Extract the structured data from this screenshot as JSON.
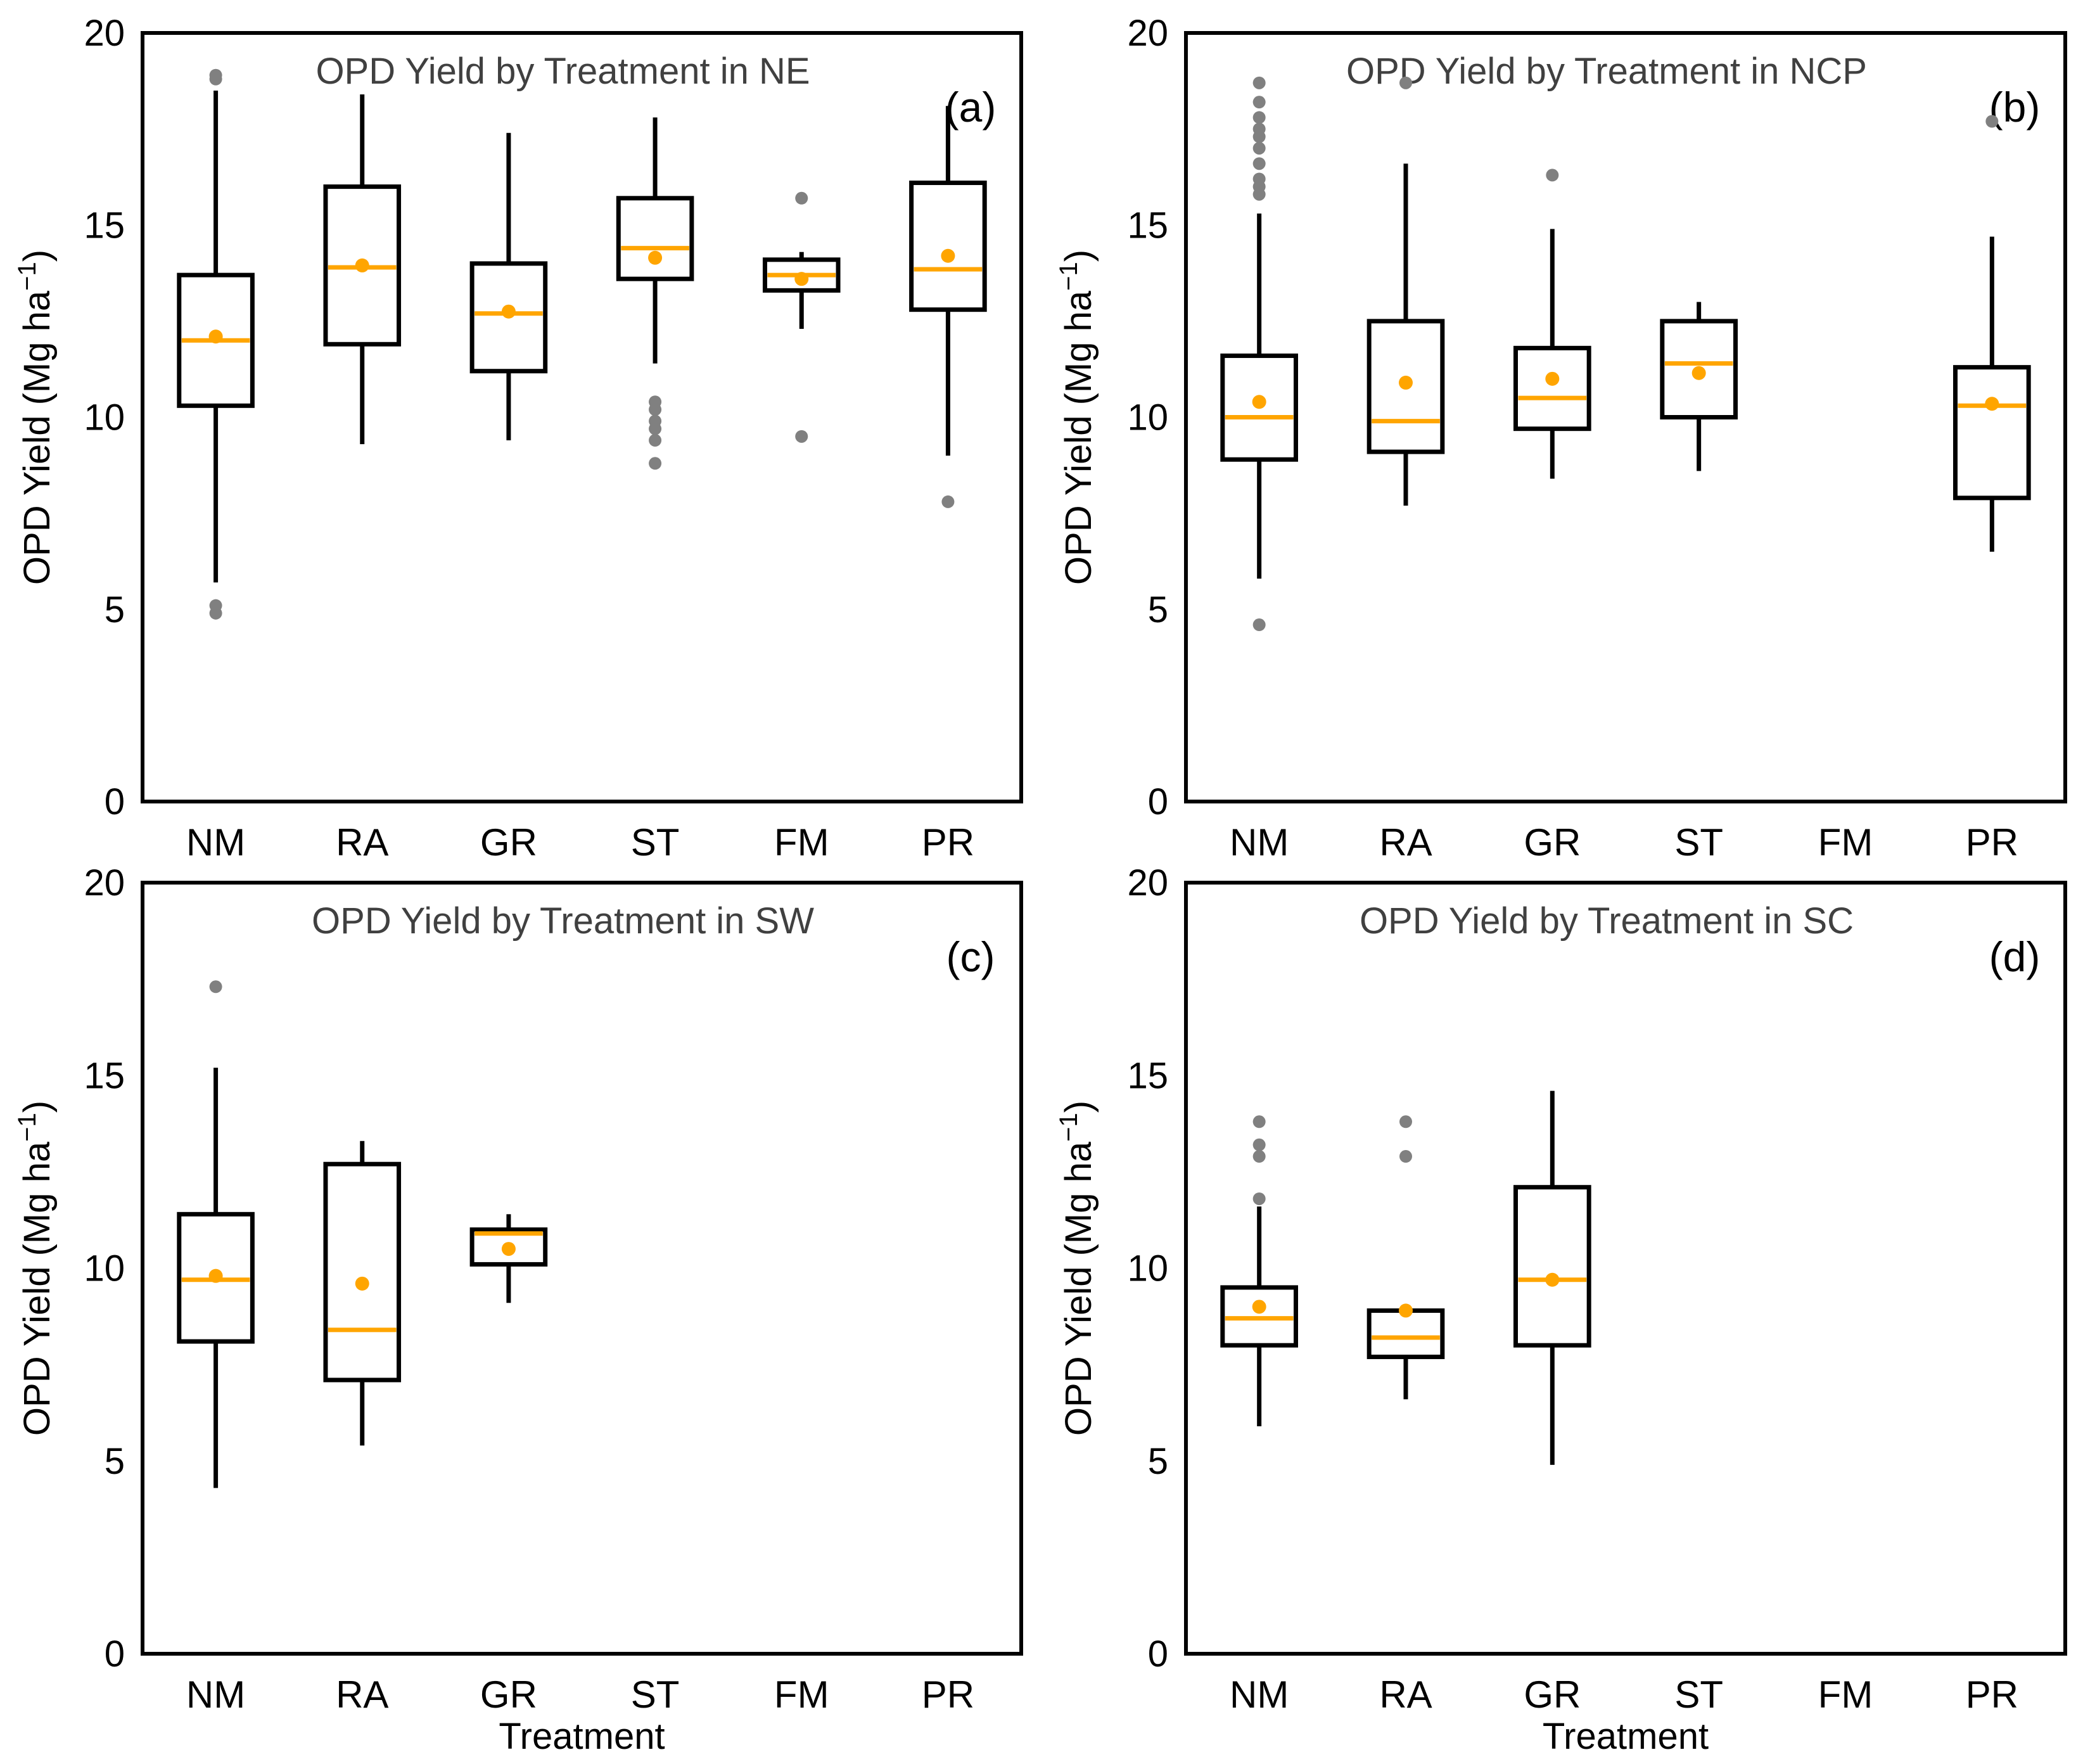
{
  "figure": {
    "xlabel": "Treatment",
    "ylabel": "OPD Yield (Mg ha",
    "ylabel_sup": "−1",
    "ylabel_close": ")"
  },
  "colors": {
    "box": "#000000",
    "median": "#FFA500",
    "mean": "#FFA500",
    "outlier": "#808080",
    "background": "#ffffff"
  },
  "chart_data": [
    {
      "type": "box",
      "panel": "(a)",
      "title": "OPD Yield by Treatment in NE",
      "categories": [
        "NM",
        "RA",
        "GR",
        "ST",
        "FM",
        "PR"
      ],
      "ylim": [
        0,
        20
      ],
      "yticks": [
        0,
        5,
        10,
        15,
        20
      ],
      "boxes": [
        {
          "category": "NM",
          "whislo": 5.7,
          "q1": 10.3,
          "med": 12.0,
          "q3": 13.7,
          "whishi": 18.5,
          "mean": 12.1,
          "fliers": [
            4.9,
            5.1,
            18.8,
            18.9
          ]
        },
        {
          "category": "RA",
          "whislo": 9.3,
          "q1": 11.9,
          "med": 13.9,
          "q3": 16.0,
          "whishi": 18.4,
          "mean": 13.95,
          "fliers": []
        },
        {
          "category": "GR",
          "whislo": 9.4,
          "q1": 11.2,
          "med": 12.7,
          "q3": 14.0,
          "whishi": 17.4,
          "mean": 12.75,
          "fliers": []
        },
        {
          "category": "ST",
          "whislo": 11.4,
          "q1": 13.6,
          "med": 14.4,
          "q3": 15.7,
          "whishi": 17.8,
          "mean": 14.15,
          "fliers": [
            8.8,
            9.4,
            9.7,
            9.9,
            10.2,
            10.4
          ]
        },
        {
          "category": "FM",
          "whislo": 12.3,
          "q1": 13.3,
          "med": 13.7,
          "q3": 14.1,
          "whishi": 14.3,
          "mean": 13.6,
          "fliers": [
            9.5,
            15.7
          ]
        },
        {
          "category": "PR",
          "whislo": 9.0,
          "q1": 12.8,
          "med": 13.85,
          "q3": 16.1,
          "whishi": 18.1,
          "mean": 14.2,
          "fliers": [
            7.8
          ]
        }
      ]
    },
    {
      "type": "box",
      "panel": "(b)",
      "title": "OPD Yield by Treatment in NCP",
      "categories": [
        "NM",
        "RA",
        "GR",
        "ST",
        "FM",
        "PR"
      ],
      "ylim": [
        0,
        20
      ],
      "yticks": [
        0,
        5,
        10,
        15,
        20
      ],
      "boxes": [
        {
          "category": "NM",
          "whislo": 5.8,
          "q1": 8.9,
          "med": 10.0,
          "q3": 11.6,
          "whishi": 15.3,
          "mean": 10.4,
          "fliers": [
            4.6,
            15.8,
            16.0,
            16.2,
            16.6,
            17.0,
            17.3,
            17.5,
            17.8,
            18.2,
            18.7
          ]
        },
        {
          "category": "RA",
          "whislo": 7.7,
          "q1": 9.1,
          "med": 9.9,
          "q3": 12.5,
          "whishi": 16.6,
          "mean": 10.9,
          "fliers": [
            18.7
          ]
        },
        {
          "category": "GR",
          "whislo": 8.4,
          "q1": 9.7,
          "med": 10.5,
          "q3": 11.8,
          "whishi": 14.9,
          "mean": 11.0,
          "fliers": [
            16.3
          ]
        },
        {
          "category": "ST",
          "whislo": 8.6,
          "q1": 10.0,
          "med": 11.4,
          "q3": 12.5,
          "whishi": 13.0,
          "mean": 11.15,
          "fliers": []
        },
        {
          "category": "PR",
          "whislo": 6.5,
          "q1": 7.9,
          "med": 10.3,
          "q3": 11.3,
          "whishi": 14.7,
          "mean": 10.35,
          "fliers": [
            17.7
          ]
        }
      ]
    },
    {
      "type": "box",
      "panel": "(c)",
      "title": "OPD Yield by Treatment in SW",
      "categories": [
        "NM",
        "RA",
        "GR",
        "ST",
        "FM",
        "PR"
      ],
      "ylim": [
        0,
        20
      ],
      "yticks": [
        0,
        5,
        10,
        15,
        20
      ],
      "boxes": [
        {
          "category": "NM",
          "whislo": 4.3,
          "q1": 8.1,
          "med": 9.7,
          "q3": 11.4,
          "whishi": 15.2,
          "mean": 9.8,
          "fliers": [
            17.3
          ]
        },
        {
          "category": "RA",
          "whislo": 5.4,
          "q1": 7.1,
          "med": 8.4,
          "q3": 12.7,
          "whishi": 13.3,
          "mean": 9.6,
          "fliers": []
        },
        {
          "category": "GR",
          "whislo": 9.1,
          "q1": 10.1,
          "med": 10.9,
          "q3": 11.0,
          "whishi": 11.4,
          "mean": 10.5,
          "fliers": []
        }
      ]
    },
    {
      "type": "box",
      "panel": "(d)",
      "title": "OPD Yield by Treatment in SC",
      "categories": [
        "NM",
        "RA",
        "GR",
        "ST",
        "FM",
        "PR"
      ],
      "ylim": [
        0,
        20
      ],
      "yticks": [
        0,
        5,
        10,
        15,
        20
      ],
      "boxes": [
        {
          "category": "NM",
          "whislo": 5.9,
          "q1": 8.0,
          "med": 8.7,
          "q3": 9.5,
          "whishi": 11.6,
          "mean": 9.0,
          "fliers": [
            11.8,
            12.9,
            13.2,
            13.8
          ]
        },
        {
          "category": "RA",
          "whislo": 6.6,
          "q1": 7.7,
          "med": 8.2,
          "q3": 8.9,
          "whishi": 8.9,
          "mean": 8.9,
          "fliers": [
            12.9,
            13.8
          ]
        },
        {
          "category": "GR",
          "whislo": 4.9,
          "q1": 8.0,
          "med": 9.7,
          "q3": 12.1,
          "whishi": 14.6,
          "mean": 9.7,
          "fliers": []
        }
      ]
    }
  ]
}
